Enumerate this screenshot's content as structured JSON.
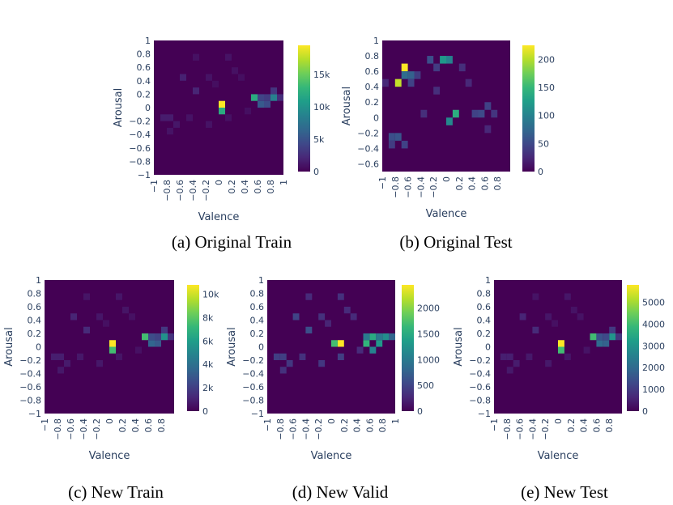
{
  "colors": {
    "colorscale": [
      "#440154",
      "#482878",
      "#3e4989",
      "#31688e",
      "#26828e",
      "#1f9e89",
      "#35b779",
      "#6ece58",
      "#b5de2b",
      "#fde725"
    ],
    "background": "#440154",
    "text": "#2a3f5f"
  },
  "chart_data": [
    {
      "type": "heatmap",
      "caption": "(a) Original Train",
      "xlabel": "Valence",
      "ylabel": "Arousal",
      "xlim": [
        -1,
        1
      ],
      "ylim": [
        -1,
        1
      ],
      "x_ticks": [
        "−1",
        "−0.8",
        "−0.6",
        "−0.4",
        "−0.2",
        "0",
        "0.2",
        "0.4",
        "0.6",
        "0.8",
        "1"
      ],
      "y_ticks": [
        "−1",
        "−0.8",
        "−0.6",
        "−0.4",
        "−0.2",
        "0",
        "0.2",
        "0.4",
        "0.6",
        "0.8",
        "1"
      ],
      "colorbar": {
        "min": 0,
        "max": 19500,
        "ticks": [
          {
            "v": 0,
            "label": "0"
          },
          {
            "v": 5000,
            "label": "5k"
          },
          {
            "v": 10000,
            "label": "10k"
          },
          {
            "v": 15000,
            "label": "15k"
          }
        ]
      },
      "cells": [
        [
          0.05,
          0.05,
          19500
        ],
        [
          0.05,
          -0.05,
          12000
        ],
        [
          0.55,
          0.15,
          12000
        ],
        [
          0.85,
          0.15,
          8500
        ],
        [
          0.65,
          0.05,
          5500
        ],
        [
          0.75,
          0.05,
          4500
        ],
        [
          0.65,
          0.15,
          4000
        ],
        [
          0.75,
          0.15,
          3500
        ],
        [
          0.85,
          0.25,
          3000
        ],
        [
          0.95,
          0.15,
          2500
        ],
        [
          -0.35,
          0.25,
          2000
        ],
        [
          -0.55,
          0.45,
          1800
        ],
        [
          -0.85,
          -0.15,
          1500
        ],
        [
          -0.75,
          -0.15,
          1500
        ],
        [
          -0.65,
          -0.25,
          1200
        ],
        [
          -0.75,
          -0.35,
          1000
        ],
        [
          -0.45,
          -0.15,
          1000
        ],
        [
          -0.15,
          -0.25,
          1000
        ],
        [
          -0.15,
          0.45,
          1000
        ],
        [
          0.15,
          0.75,
          1000
        ],
        [
          0.25,
          0.55,
          900
        ],
        [
          -0.35,
          0.75,
          900
        ],
        [
          0.45,
          -0.05,
          800
        ],
        [
          0.35,
          0.45,
          800
        ],
        [
          -0.05,
          0.35,
          700
        ],
        [
          0.15,
          -0.15,
          900
        ]
      ]
    },
    {
      "type": "heatmap",
      "caption": "(b) Original Test",
      "xlabel": "Valence",
      "ylabel": "Arousal",
      "xlim": [
        -1,
        1
      ],
      "ylim": [
        -0.7,
        1
      ],
      "x_ticks": [
        "−1",
        "−0.8",
        "−0.6",
        "−0.4",
        "−0.2",
        "0",
        "0.2",
        "0.4",
        "0.6",
        "0.8"
      ],
      "y_ticks": [
        "−0.6",
        "−0.4",
        "−0.2",
        "0",
        "0.2",
        "0.4",
        "0.6",
        "0.8",
        "1"
      ],
      "colorbar": {
        "min": 0,
        "max": 225,
        "ticks": [
          {
            "v": 0,
            "label": "0"
          },
          {
            "v": 50,
            "label": "50"
          },
          {
            "v": 100,
            "label": "100"
          },
          {
            "v": 150,
            "label": "150"
          },
          {
            "v": 200,
            "label": "200"
          }
        ]
      },
      "cells": [
        [
          -0.65,
          0.65,
          225
        ],
        [
          -0.75,
          0.45,
          205
        ],
        [
          -0.05,
          0.75,
          120
        ],
        [
          0.05,
          0.75,
          100
        ],
        [
          0.15,
          0.05,
          140
        ],
        [
          0.05,
          -0.05,
          105
        ],
        [
          -0.65,
          0.55,
          80
        ],
        [
          -0.55,
          0.55,
          70
        ],
        [
          -0.25,
          0.75,
          55
        ],
        [
          -0.15,
          0.65,
          40
        ],
        [
          -0.55,
          0.45,
          45
        ],
        [
          -0.45,
          0.55,
          40
        ],
        [
          0.45,
          0.05,
          45
        ],
        [
          0.55,
          0.05,
          50
        ],
        [
          0.65,
          0.15,
          45
        ],
        [
          0.75,
          0.05,
          35
        ],
        [
          -0.85,
          -0.25,
          55
        ],
        [
          -0.75,
          -0.25,
          60
        ],
        [
          -0.65,
          -0.35,
          45
        ],
        [
          -0.85,
          -0.35,
          40
        ],
        [
          -0.35,
          0.05,
          30
        ],
        [
          0.25,
          0.65,
          30
        ],
        [
          0.35,
          0.45,
          25
        ],
        [
          -0.15,
          0.35,
          30
        ],
        [
          0.65,
          -0.15,
          25
        ],
        [
          -0.95,
          0.45,
          25
        ]
      ]
    },
    {
      "type": "heatmap",
      "caption": "(c) New Train",
      "xlabel": "Valence",
      "ylabel": "Arousal",
      "xlim": [
        -1,
        1
      ],
      "ylim": [
        -1,
        1
      ],
      "x_ticks": [
        "−1",
        "−0.8",
        "−0.6",
        "−0.4",
        "−0.2",
        "0",
        "0.2",
        "0.4",
        "0.6",
        "0.8"
      ],
      "y_ticks": [
        "−1",
        "−0.8",
        "−0.6",
        "−0.4",
        "−0.2",
        "0",
        "0.2",
        "0.4",
        "0.6",
        "0.8",
        "1"
      ],
      "colorbar": {
        "min": 0,
        "max": 10800,
        "ticks": [
          {
            "v": 0,
            "label": "0"
          },
          {
            "v": 2000,
            "label": "2k"
          },
          {
            "v": 4000,
            "label": "4k"
          },
          {
            "v": 6000,
            "label": "6k"
          },
          {
            "v": 8000,
            "label": "8k"
          },
          {
            "v": 10000,
            "label": "10k"
          }
        ]
      },
      "cells": [
        [
          0.05,
          0.05,
          10800
        ],
        [
          0.05,
          -0.05,
          7500
        ],
        [
          0.55,
          0.15,
          7500
        ],
        [
          0.85,
          0.15,
          5500
        ],
        [
          0.65,
          0.05,
          3500
        ],
        [
          0.75,
          0.05,
          3000
        ],
        [
          0.65,
          0.15,
          2500
        ],
        [
          0.75,
          0.15,
          2200
        ],
        [
          0.85,
          0.25,
          1800
        ],
        [
          0.95,
          0.15,
          1600
        ],
        [
          -0.35,
          0.25,
          1300
        ],
        [
          -0.55,
          0.45,
          1100
        ],
        [
          -0.85,
          -0.15,
          900
        ],
        [
          -0.75,
          -0.15,
          900
        ],
        [
          -0.65,
          -0.25,
          800
        ],
        [
          -0.75,
          -0.35,
          700
        ],
        [
          -0.45,
          -0.15,
          700
        ],
        [
          -0.15,
          -0.25,
          700
        ],
        [
          -0.15,
          0.45,
          650
        ],
        [
          0.15,
          0.75,
          650
        ],
        [
          0.25,
          0.55,
          600
        ],
        [
          -0.35,
          0.75,
          600
        ],
        [
          0.45,
          -0.05,
          500
        ],
        [
          0.35,
          0.45,
          500
        ],
        [
          -0.05,
          0.35,
          450
        ],
        [
          0.15,
          -0.15,
          600
        ]
      ]
    },
    {
      "type": "heatmap",
      "caption": "(d) New Valid",
      "xlabel": "Valence",
      "ylabel": "Arousal",
      "xlim": [
        -1,
        1
      ],
      "ylim": [
        -1,
        1
      ],
      "x_ticks": [
        "−1",
        "−0.8",
        "−0.6",
        "−0.4",
        "−0.2",
        "0",
        "0.2",
        "0.4",
        "0.6",
        "0.8",
        "1"
      ],
      "y_ticks": [
        "−1",
        "−0.8",
        "−0.6",
        "−0.4",
        "−0.2",
        "0",
        "0.2",
        "0.4",
        "0.6",
        "0.8",
        "1"
      ],
      "colorbar": {
        "min": 0,
        "max": 2450,
        "ticks": [
          {
            "v": 0,
            "label": "0"
          },
          {
            "v": 500,
            "label": "500"
          },
          {
            "v": 1000,
            "label": "1000"
          },
          {
            "v": 1500,
            "label": "1500"
          },
          {
            "v": 2000,
            "label": "2000"
          }
        ]
      },
      "cells": [
        [
          0.15,
          0.05,
          2450
        ],
        [
          0.05,
          0.05,
          1700
        ],
        [
          0.55,
          0.05,
          1600
        ],
        [
          0.65,
          0.15,
          1500
        ],
        [
          0.75,
          0.05,
          1300
        ],
        [
          0.85,
          0.15,
          1200
        ],
        [
          0.65,
          -0.05,
          1100
        ],
        [
          0.55,
          0.15,
          1000
        ],
        [
          0.75,
          0.15,
          1000
        ],
        [
          0.95,
          0.15,
          800
        ],
        [
          -0.35,
          0.25,
          600
        ],
        [
          -0.55,
          0.45,
          500
        ],
        [
          -0.85,
          -0.15,
          450
        ],
        [
          -0.75,
          -0.15,
          450
        ],
        [
          -0.65,
          -0.25,
          400
        ],
        [
          -0.75,
          -0.35,
          350
        ],
        [
          -0.45,
          -0.15,
          350
        ],
        [
          -0.15,
          -0.25,
          400
        ],
        [
          -0.15,
          0.45,
          350
        ],
        [
          0.15,
          0.75,
          350
        ],
        [
          0.25,
          0.55,
          300
        ],
        [
          -0.35,
          0.75,
          300
        ],
        [
          0.45,
          -0.05,
          300
        ],
        [
          0.35,
          0.45,
          300
        ],
        [
          -0.05,
          0.35,
          250
        ],
        [
          0.15,
          -0.15,
          450
        ]
      ]
    },
    {
      "type": "heatmap",
      "caption": "(e) New Test",
      "xlabel": "Valence",
      "ylabel": "Arousal",
      "xlim": [
        -1,
        1
      ],
      "ylim": [
        -1,
        1
      ],
      "x_ticks": [
        "−1",
        "−0.8",
        "−0.6",
        "−0.4",
        "−0.2",
        "0",
        "0.2",
        "0.4",
        "0.6",
        "0.8"
      ],
      "y_ticks": [
        "−1",
        "−0.8",
        "−0.6",
        "−0.4",
        "−0.2",
        "0",
        "0.2",
        "0.4",
        "0.6",
        "0.8",
        "1"
      ],
      "colorbar": {
        "min": 0,
        "max": 5800,
        "ticks": [
          {
            "v": 0,
            "label": "0"
          },
          {
            "v": 1000,
            "label": "1000"
          },
          {
            "v": 2000,
            "label": "2000"
          },
          {
            "v": 3000,
            "label": "3000"
          },
          {
            "v": 4000,
            "label": "4000"
          },
          {
            "v": 5000,
            "label": "5000"
          }
        ]
      },
      "cells": [
        [
          0.05,
          0.05,
          5800
        ],
        [
          0.05,
          -0.05,
          4000
        ],
        [
          0.55,
          0.15,
          4000
        ],
        [
          0.85,
          0.15,
          3000
        ],
        [
          0.65,
          0.05,
          2000
        ],
        [
          0.75,
          0.05,
          1800
        ],
        [
          0.65,
          0.15,
          1500
        ],
        [
          0.75,
          0.15,
          1300
        ],
        [
          0.85,
          0.25,
          1000
        ],
        [
          0.95,
          0.15,
          900
        ],
        [
          -0.35,
          0.25,
          700
        ],
        [
          -0.55,
          0.45,
          600
        ],
        [
          -0.85,
          -0.15,
          500
        ],
        [
          -0.75,
          -0.15,
          500
        ],
        [
          -0.65,
          -0.25,
          450
        ],
        [
          -0.75,
          -0.35,
          400
        ],
        [
          -0.45,
          -0.15,
          400
        ],
        [
          -0.15,
          -0.25,
          400
        ],
        [
          -0.15,
          0.45,
          350
        ],
        [
          0.15,
          0.75,
          350
        ],
        [
          0.25,
          0.55,
          300
        ],
        [
          -0.35,
          0.75,
          300
        ],
        [
          0.45,
          -0.05,
          300
        ],
        [
          0.35,
          0.45,
          300
        ],
        [
          -0.05,
          0.35,
          250
        ],
        [
          0.15,
          -0.15,
          350
        ]
      ]
    }
  ]
}
